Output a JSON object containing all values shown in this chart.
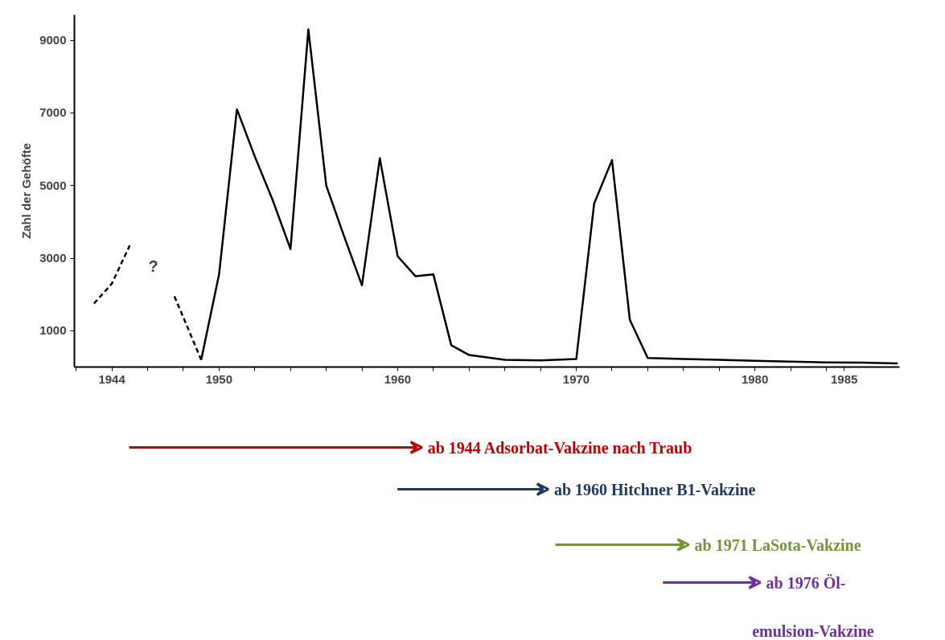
{
  "chart_data": {
    "type": "line",
    "ylabel": "Zahl der Gehöfte",
    "series": [
      {
        "color": "#000000",
        "line_style": "solid",
        "x": [
          1949,
          1950,
          1951,
          1952,
          1953,
          1954,
          1955,
          1956,
          1957,
          1958,
          1959,
          1960,
          1961,
          1962,
          1963,
          1964,
          1966,
          1968,
          1970,
          1971,
          1972,
          1973,
          1974,
          1976,
          1978,
          1980,
          1982,
          1984,
          1986,
          1988
        ],
        "values": [
          200,
          2550,
          7100,
          5800,
          4600,
          3250,
          9300,
          5000,
          3600,
          2250,
          5750,
          3050,
          2500,
          2550,
          600,
          330,
          200,
          180,
          220,
          4500,
          5700,
          1300,
          250,
          220,
          200,
          170,
          150,
          130,
          120,
          100
        ]
      },
      {
        "color": "#000000",
        "line_style": "dashed",
        "x": [
          1943,
          1944,
          1945
        ],
        "values": [
          1750,
          2300,
          3350
        ]
      },
      {
        "color": "#000000",
        "line_style": "dashed",
        "x": [
          1947.5,
          1949
        ],
        "values": [
          1950,
          200
        ]
      }
    ],
    "xlim": [
      1941.9,
      1988.1
    ],
    "ylim": [
      0,
      9700
    ],
    "xticks": [
      {
        "value": 1942,
        "label": null
      },
      1944,
      {
        "value": 1946,
        "label": null
      },
      {
        "value": 1948,
        "label": null
      },
      1950,
      {
        "value": 1952,
        "label": null
      },
      {
        "value": 1954,
        "label": null
      },
      {
        "value": 1956,
        "label": null
      },
      {
        "value": 1958,
        "label": null
      },
      1960,
      {
        "value": 1962,
        "label": null
      },
      {
        "value": 1964,
        "label": null
      },
      {
        "value": 1966,
        "label": null
      },
      {
        "value": 1968,
        "label": null
      },
      1970,
      {
        "value": 1972,
        "label": null
      },
      {
        "value": 1974,
        "label": null
      },
      {
        "value": 1976,
        "label": null
      },
      {
        "value": 1978,
        "label": null
      },
      1980,
      {
        "value": 1982,
        "label": null
      },
      {
        "value": 1984,
        "label": null
      },
      1985
    ],
    "yticks": [
      1000,
      3000,
      5000,
      7000,
      9000
    ],
    "grid": false,
    "marker": "none",
    "annotations": [
      "?",
      "ab 1944 Adsorbat-Vakzine nach Traub",
      "ab 1960 Hitchner B1-Vakzine",
      "ab 1971 LaSota-Vakzine",
      "ab 1976 Öl-\nemulsion-Vakzine"
    ]
  }
}
